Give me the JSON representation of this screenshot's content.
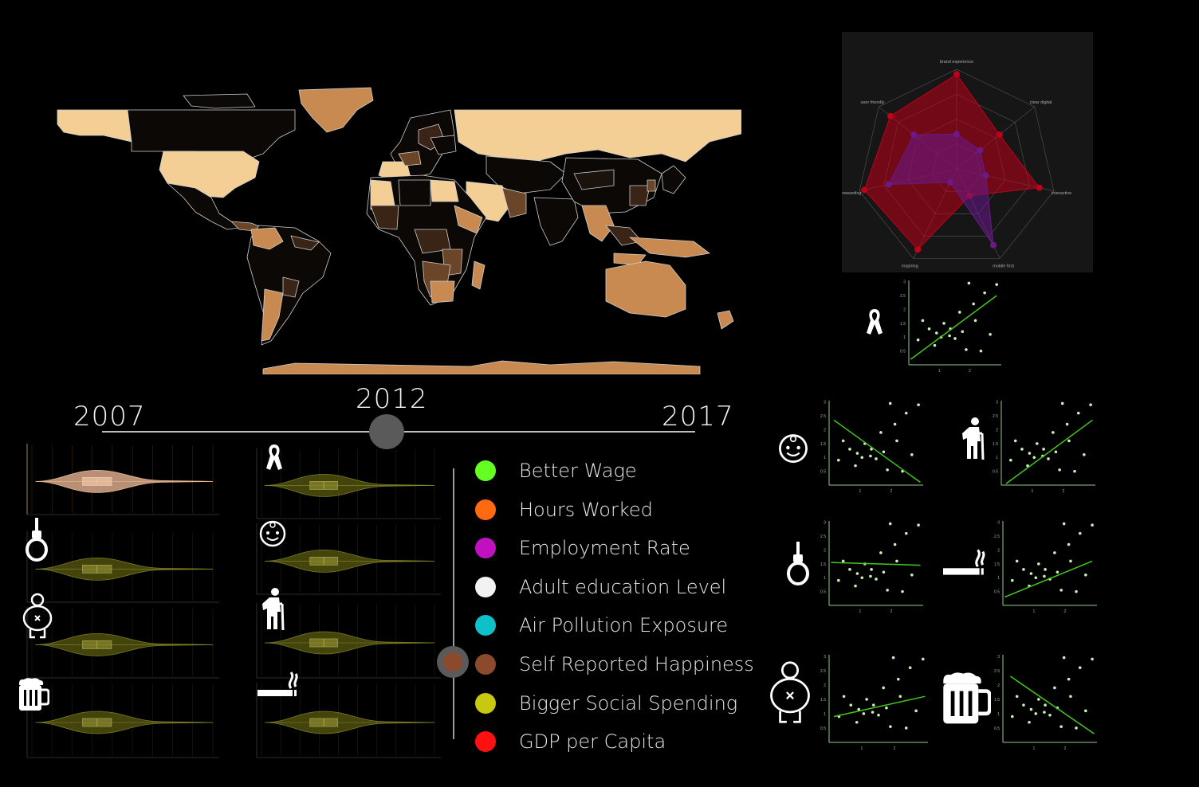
{
  "map": {
    "label": ""
  },
  "radar": {
    "axes": [
      "brand experience",
      "clear digital",
      "interactive",
      "mobile first",
      "inspiring",
      "rewarding",
      "user friendly"
    ],
    "series": [
      {
        "values": [
          0.95,
          0.55,
          0.85,
          0.3,
          0.9,
          0.95,
          0.85
        ],
        "color": "#c0001a"
      },
      {
        "values": [
          0.35,
          0.3,
          0.3,
          0.85,
          0.15,
          0.7,
          0.55
        ],
        "color": "#6a1a8a"
      }
    ]
  },
  "timeline": {
    "start": "2007",
    "current": "2012",
    "end": "2017"
  },
  "legend": {
    "items": [
      {
        "label": "Better Wage",
        "color": "#66ff22"
      },
      {
        "label": "Hours Worked",
        "color": "#ff6a10"
      },
      {
        "label": "Employment Rate",
        "color": "#c010c0"
      },
      {
        "label": "Adult education  Level",
        "color": "#f2f2f2"
      },
      {
        "label": "Air Pollution  Exposure",
        "color": "#10c0c8"
      },
      {
        "label": "Self  Reported Happiness",
        "color": "#8b4a2b"
      },
      {
        "label": "Bigger Social Spending",
        "color": "#c8c810"
      },
      {
        "label": "GDP per Capita",
        "color": "#ff1010"
      }
    ]
  },
  "icons": [
    "ribbon-icon",
    "noose-icon",
    "baby-icon",
    "elderly-icon",
    "obesity-icon",
    "smoking-icon",
    "beer-icon"
  ],
  "scatter": {
    "yticks": [
      "3",
      "2.5",
      "2",
      "1.5",
      "1",
      "0.5"
    ],
    "xticks": [
      "1",
      "2"
    ]
  }
}
